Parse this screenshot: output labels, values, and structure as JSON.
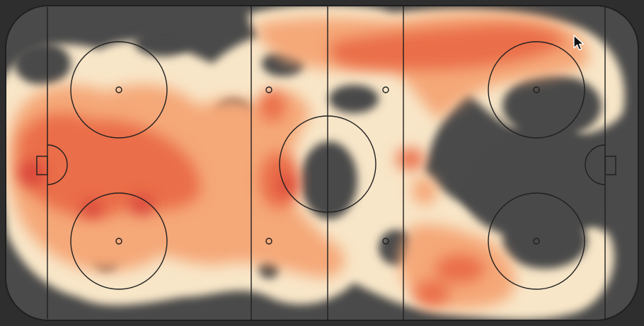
{
  "view": {
    "kind": "hockey-rink-heatmap",
    "surface": "ice-rink",
    "orientation": "horizontal"
  },
  "colors": {
    "background_dark": "#2e2e2e",
    "rink_cold": "#4a4a4a",
    "rink_edge": "#3b3b3b",
    "heat_low": "#f8e6c8",
    "heat_mid": "#f5a878",
    "heat_high": "#ea6e4a",
    "heat_peak": "#d9443a",
    "markings": "#1f1f1f"
  },
  "icons": {
    "cursor": "arrow-cursor-icon"
  },
  "chart_data": {
    "type": "heatmap",
    "title": "",
    "xlabel": "",
    "ylabel": "",
    "legend": "none",
    "grid": false,
    "zones": [
      {
        "zone": "left-defensive",
        "intensity": "high"
      },
      {
        "zone": "left-faceoff-top",
        "intensity": "medium"
      },
      {
        "zone": "left-faceoff-bottom",
        "intensity": "peak"
      },
      {
        "zone": "neutral-center",
        "intensity": "high"
      },
      {
        "zone": "right-top-lane",
        "intensity": "high"
      },
      {
        "zone": "right-faceoff-top",
        "intensity": "low"
      },
      {
        "zone": "right-faceoff-bottom",
        "intensity": "medium"
      },
      {
        "zone": "right-corner-bottom",
        "intensity": "medium"
      }
    ]
  }
}
